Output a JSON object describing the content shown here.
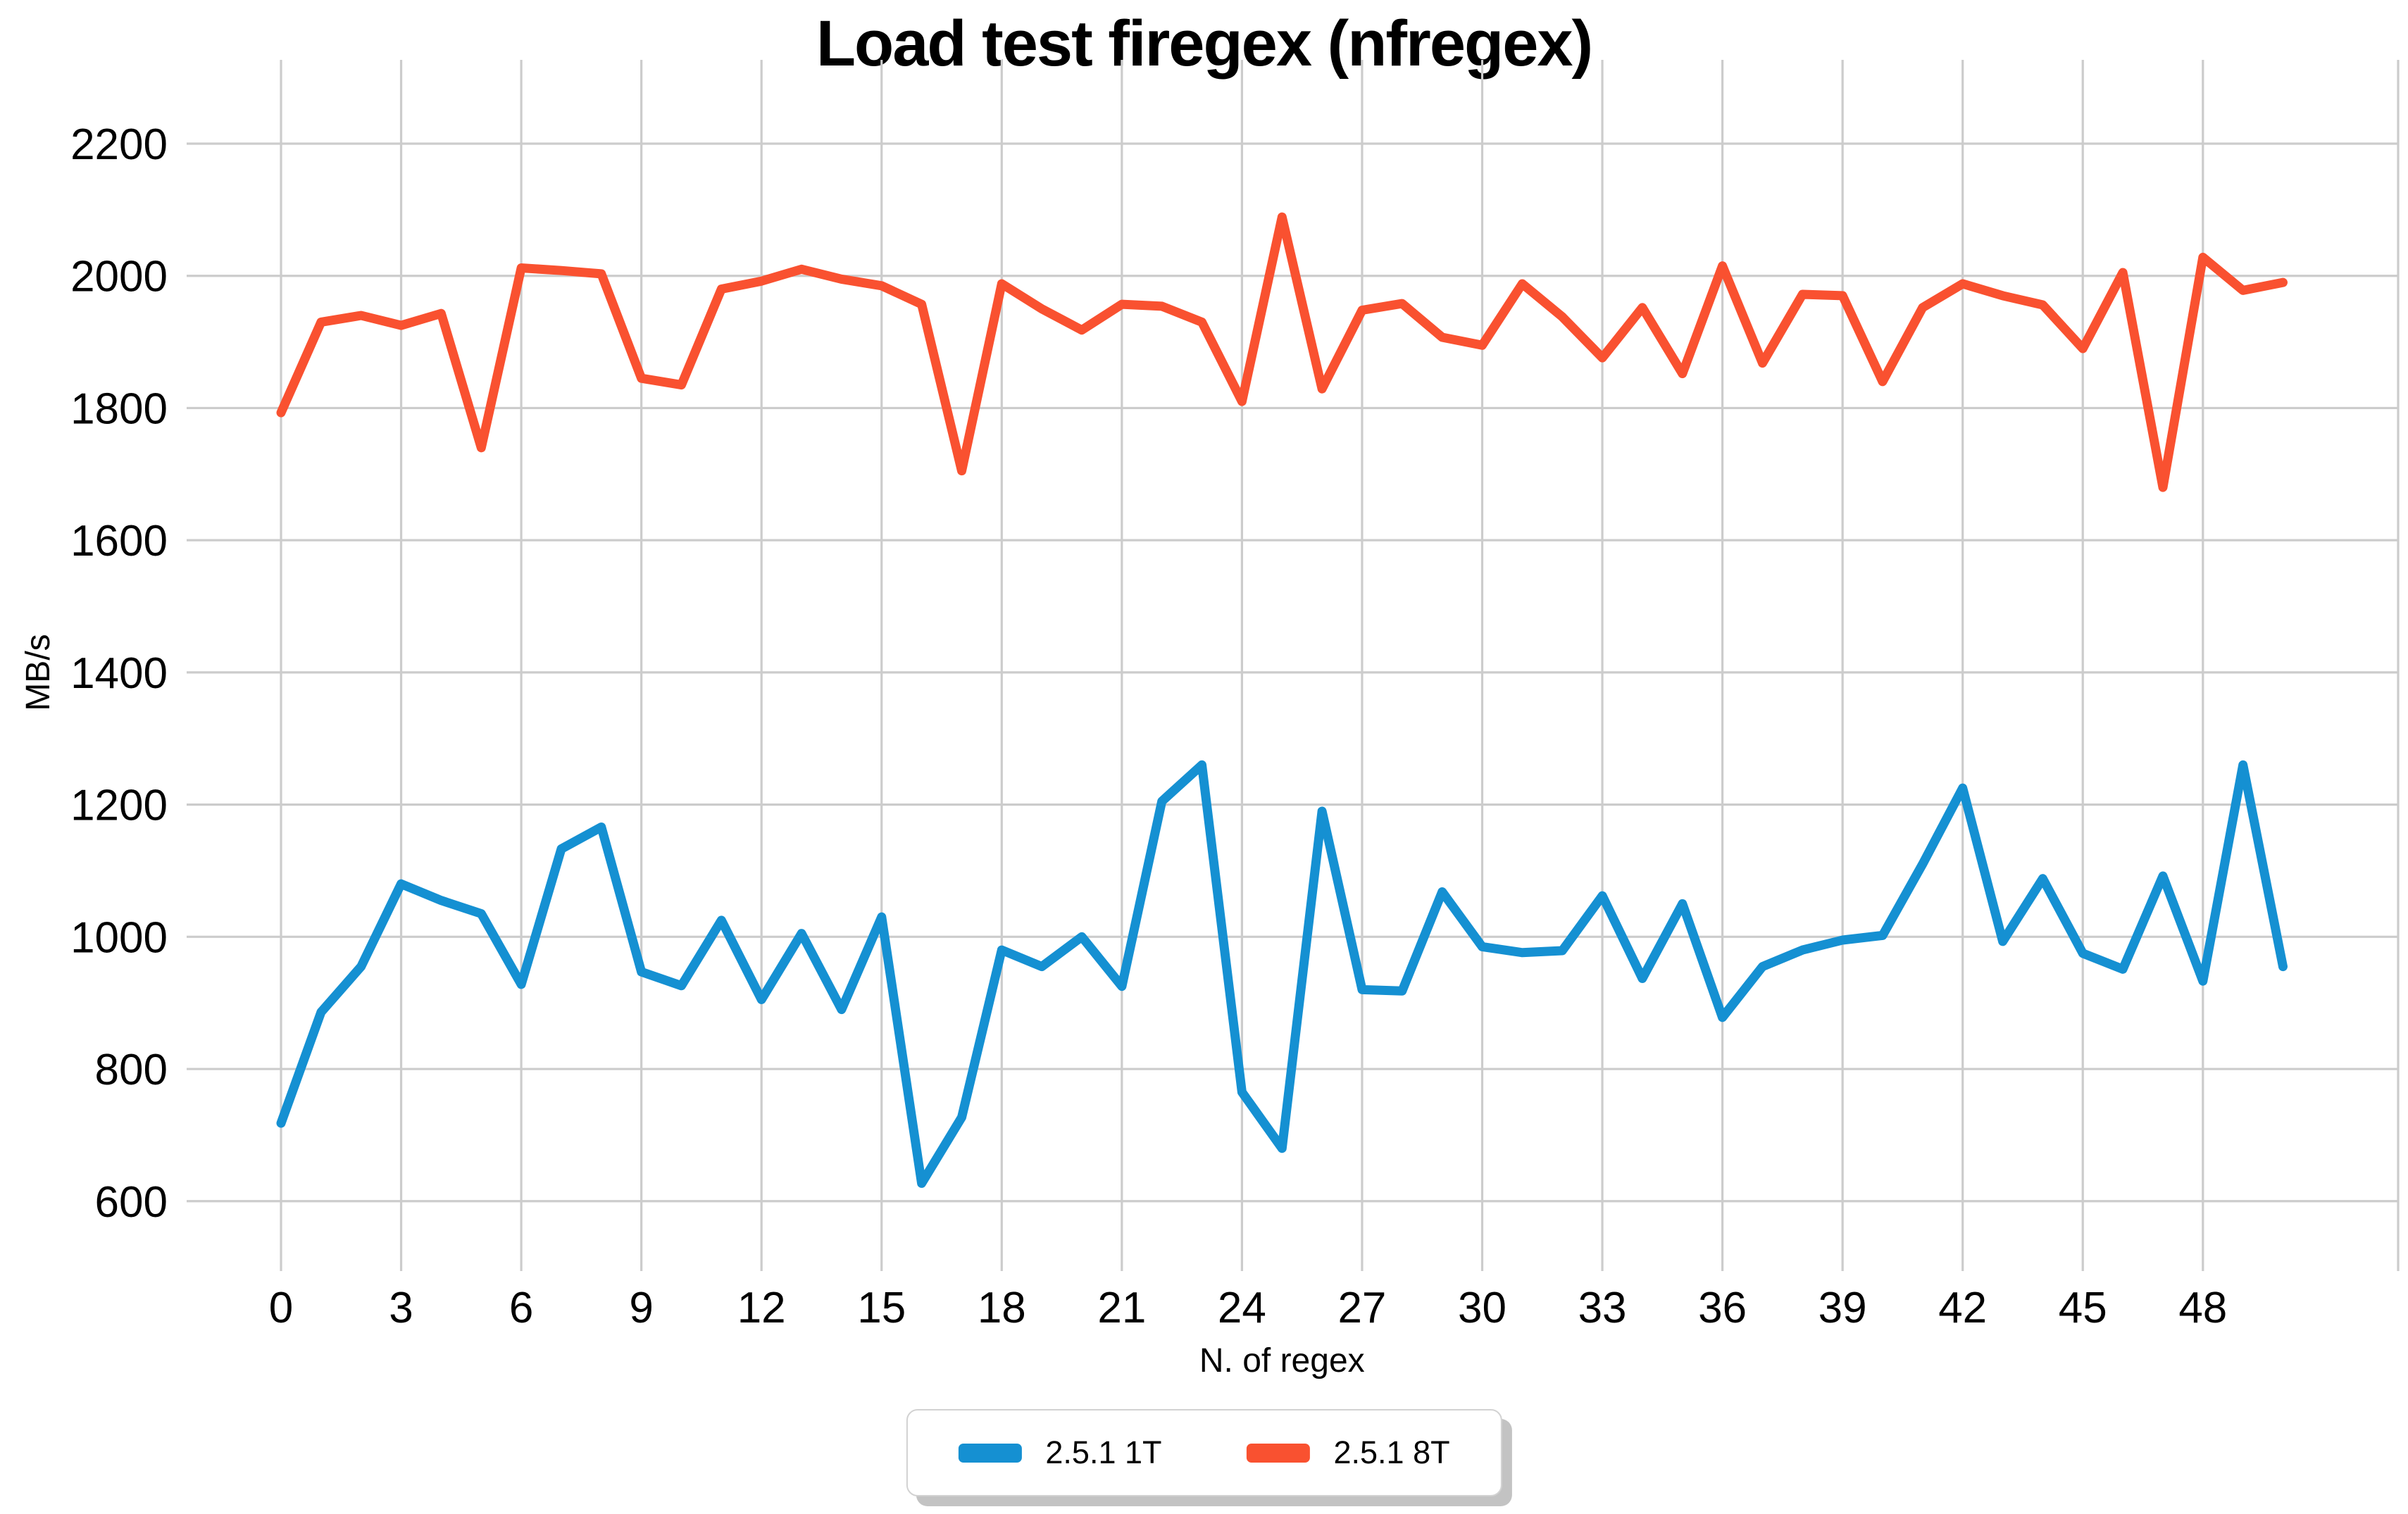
{
  "title": "Load test firegex (nfregex)",
  "colors": {
    "series_1t": "#1590d2",
    "series_8t": "#f95130",
    "grid": "#cccccc",
    "legend_border": "#d2d2d2",
    "legend_shadow": "#c3c3c3"
  },
  "chart_data": {
    "type": "line",
    "title": "Load test firegex (nfregex)",
    "xlabel": "N. of regex",
    "ylabel": "MB/s",
    "x_ticks": [
      0,
      3,
      6,
      9,
      12,
      15,
      18,
      21,
      24,
      27,
      30,
      33,
      36,
      39,
      42,
      45,
      48
    ],
    "y_ticks": [
      600,
      800,
      1000,
      1200,
      1400,
      1600,
      1800,
      2000,
      2200
    ],
    "xlim": [
      -2.4,
      52.9
    ],
    "ylim": [
      495,
      2325
    ],
    "grid": true,
    "grid_color": "#cccccc",
    "legend_position": "bottom-center",
    "x": [
      0,
      1,
      2,
      3,
      4,
      5,
      6,
      7,
      8,
      9,
      10,
      11,
      12,
      13,
      14,
      15,
      16,
      17,
      18,
      19,
      20,
      21,
      22,
      23,
      24,
      25,
      26,
      27,
      28,
      29,
      30,
      31,
      32,
      33,
      34,
      35,
      36,
      37,
      38,
      39,
      40,
      41,
      42,
      43,
      44,
      45,
      46,
      47,
      48,
      49,
      50
    ],
    "series": [
      {
        "name": "2.5.1 1T",
        "color": "#1590d2",
        "values": [
          718,
          886,
          955,
          1080,
          1055,
          1035,
          928,
          1133,
          1166,
          947,
          926,
          1025,
          905,
          1005,
          890,
          1030,
          627,
          727,
          980,
          955,
          1000,
          925,
          1205,
          1260,
          765,
          680,
          1190,
          920,
          918,
          1068,
          985,
          976,
          979,
          1062,
          937,
          1050,
          878,
          955,
          980,
          995,
          1002,
          1110,
          1225,
          993,
          1088,
          975,
          951,
          1092,
          933,
          1260,
          955
        ]
      },
      {
        "name": "2.5.1 8T",
        "color": "#f95130",
        "values": [
          1793,
          1930,
          1940,
          1925,
          1943,
          1740,
          2012,
          2008,
          2003,
          1845,
          1835,
          1980,
          1992,
          2010,
          1995,
          1985,
          1957,
          1705,
          1988,
          1950,
          1918,
          1957,
          1954,
          1930,
          1810,
          2089,
          1829,
          1948,
          1958,
          1907,
          1895,
          1988,
          1938,
          1876,
          1952,
          1852,
          2015,
          1868,
          1972,
          1970,
          1840,
          1952,
          1988,
          1970,
          1956,
          1890,
          2005,
          1680,
          2028,
          1978,
          1990
        ]
      }
    ]
  }
}
